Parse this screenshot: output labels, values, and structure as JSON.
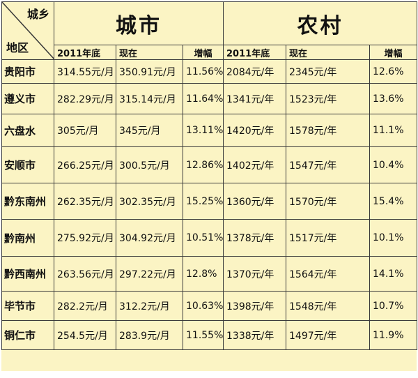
{
  "header": {
    "corner_top": "城乡",
    "corner_bottom": "地区",
    "urban": "城市",
    "rural": "农村",
    "col_2011": "2011年底",
    "col_now": "现在",
    "col_rate": "增幅"
  },
  "rows": [
    {
      "region": "贵阳市",
      "u_2011": "314.55元/月",
      "u_now": "350.91元/月",
      "u_rate": "11.56%",
      "r_2011": "2084元/年",
      "r_now": "2345元/年",
      "r_rate": "12.6%"
    },
    {
      "region": "遵义市",
      "u_2011": "282.29元/月",
      "u_now": "315.14元/月",
      "u_rate": "11.64%",
      "r_2011": "1341元/年",
      "r_now": "1523元/年",
      "r_rate": "13.6%"
    },
    {
      "region": "六盘水",
      "u_2011": "305元/月",
      "u_now": "345元/月",
      "u_rate": "13.11%",
      "r_2011": "1420元/年",
      "r_now": "1578元/年",
      "r_rate": "11.1%"
    },
    {
      "region": "安顺市",
      "u_2011": "266.25元/月",
      "u_now": "300.5元/月",
      "u_rate": "12.86%",
      "r_2011": "1402元/年",
      "r_now": "1547元/年",
      "r_rate": "10.4%"
    },
    {
      "region": "黔东南州",
      "u_2011": "262.35元/月",
      "u_now": "302.35元/月",
      "u_rate": "15.25%",
      "r_2011": "1360元/年",
      "r_now": "1570元/年",
      "r_rate": "15.4%"
    },
    {
      "region": "黔南州",
      "u_2011": "275.92元/月",
      "u_now": "304.92元/月",
      "u_rate": "10.51%",
      "r_2011": "1378元/年",
      "r_now": "1517元/年",
      "r_rate": "10.1%"
    },
    {
      "region": "黔西南州",
      "u_2011": "263.56元/月",
      "u_now": "297.22元/月",
      "u_rate": "12.8%",
      "r_2011": "1370元/年",
      "r_now": "1564元/年",
      "r_rate": "14.1%"
    },
    {
      "region": "毕节市",
      "u_2011": "282.2元/月",
      "u_now": "312.2元/月",
      "u_rate": "10.63%",
      "r_2011": "1398元/年",
      "r_now": "1548元/年",
      "r_rate": "10.7%"
    },
    {
      "region": "铜仁市",
      "u_2011": "254.5元/月",
      "u_now": "283.9元/月",
      "u_rate": "11.55%",
      "r_2011": "1338元/年",
      "r_now": "1497元/年",
      "r_rate": "11.9%"
    }
  ]
}
